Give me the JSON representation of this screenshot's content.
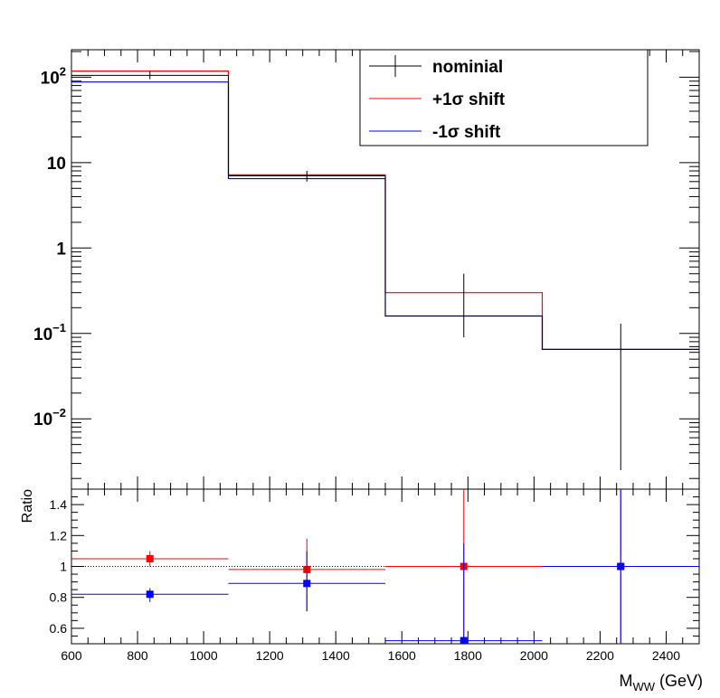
{
  "chart_data": [
    {
      "type": "histogram",
      "panel": "main",
      "yscale": "log",
      "xlim": [
        600,
        2500
      ],
      "ylim": [
        0.0015,
        210
      ],
      "yticks": [
        {
          "value": 100,
          "base": "10",
          "exp": "2"
        },
        {
          "value": 10,
          "base": "10",
          "exp": ""
        },
        {
          "value": 1,
          "base": "1",
          "exp": ""
        },
        {
          "value": 0.1,
          "base": "10",
          "exp": "−1"
        },
        {
          "value": 0.01,
          "base": "10",
          "exp": "−2"
        }
      ],
      "bin_edges": [
        600,
        1075,
        1550,
        2025,
        2500
      ],
      "series": [
        {
          "name": "nominial",
          "color": "#000000",
          "style": "errorbar",
          "x": [
            837.5,
            1312.5,
            1787.5,
            2262.5
          ],
          "values": [
            105,
            7.0,
            0.16,
            0.065
          ],
          "err_low": [
            95,
            6.0,
            0.09,
            0.0025
          ],
          "err_high": [
            118,
            8.0,
            0.5,
            0.13
          ]
        },
        {
          "name": "+1σ shift",
          "color": "#ff0000",
          "style": "step",
          "values": [
            118,
            7.2,
            0.3,
            0.065
          ]
        },
        {
          "name": "-1σ shift",
          "color": "#0000ff",
          "style": "step",
          "values": [
            88,
            6.5,
            0.16,
            0.065
          ]
        }
      ],
      "legend": {
        "position": "top-right"
      }
    },
    {
      "type": "scatter",
      "panel": "ratio",
      "xlim": [
        600,
        2500
      ],
      "ylim": [
        0.5,
        1.5
      ],
      "ylabel": "Ratio",
      "xlabel_main": "M",
      "xlabel_sub": "WW",
      "xlabel_unit": " (GeV)",
      "xticks": [
        600,
        800,
        1000,
        1200,
        1400,
        1600,
        1800,
        2000,
        2200,
        2400
      ],
      "yticks": [
        0.6,
        0.8,
        1,
        1.2,
        1.4
      ],
      "reference_line": 1,
      "bin_edges": [
        600,
        1075,
        1550,
        2025,
        2500
      ],
      "x": [
        837.5,
        1312.5,
        1787.5,
        2262.5
      ],
      "series": [
        {
          "name": "+1σ shift",
          "color": "#ff0000",
          "values": [
            1.05,
            0.98,
            1.0,
            1.0
          ],
          "err_low": [
            1.0,
            0.71,
            0.5,
            0.5
          ],
          "err_high": [
            1.1,
            1.18,
            1.5,
            1.5
          ]
        },
        {
          "name": "-1σ shift",
          "color": "#0000ff",
          "values": [
            0.82,
            0.89,
            0.52,
            1.0
          ],
          "err_low": [
            0.77,
            0.71,
            0.5,
            0.5
          ],
          "err_high": [
            0.86,
            1.1,
            1.15,
            1.5
          ]
        }
      ]
    }
  ]
}
